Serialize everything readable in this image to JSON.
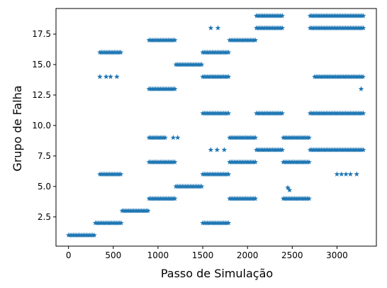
{
  "chart_data": {
    "type": "scatter",
    "title": "",
    "xlabel": "Passo de Simulação",
    "ylabel": "Grupo de Falha",
    "xlim": [
      -140,
      3440
    ],
    "ylim": [
      0.1,
      19.6
    ],
    "xticks": [
      0,
      500,
      1000,
      1500,
      2000,
      2500,
      3000
    ],
    "yticks": [
      2.5,
      5.0,
      7.5,
      10.0,
      12.5,
      15.0,
      17.5
    ],
    "xtick_labels": [
      "0",
      "500",
      "1000",
      "1500",
      "2000",
      "2500",
      "3000"
    ],
    "ytick_labels": [
      "2.5",
      "5.0",
      "7.5",
      "10.0",
      "12.5",
      "15.0",
      "17.5"
    ],
    "grid": false,
    "marker": "star",
    "color": "#1f77b4",
    "segments": [
      {
        "group": 1,
        "ranges": [
          [
            0,
            300
          ]
        ]
      },
      {
        "group": 2,
        "ranges": [
          [
            300,
            600
          ],
          [
            1500,
            1800
          ]
        ]
      },
      {
        "group": 3,
        "ranges": [
          [
            600,
            900
          ]
        ]
      },
      {
        "group": 4,
        "ranges": [
          [
            900,
            1200
          ],
          [
            1800,
            2100
          ],
          [
            2400,
            2700
          ]
        ]
      },
      {
        "group": 5,
        "ranges": [
          [
            1200,
            1500
          ]
        ]
      },
      {
        "group": 6,
        "ranges": [
          [
            350,
            600
          ],
          [
            1500,
            1800
          ]
        ]
      },
      {
        "group": 7,
        "ranges": [
          [
            900,
            1200
          ],
          [
            1800,
            2100
          ],
          [
            2400,
            2700
          ]
        ]
      },
      {
        "group": 8,
        "ranges": [
          [
            2100,
            2400
          ],
          [
            2700,
            3300
          ]
        ]
      },
      {
        "group": 9,
        "ranges": [
          [
            900,
            1080
          ],
          [
            1800,
            2100
          ],
          [
            2400,
            2700
          ]
        ]
      },
      {
        "group": 11,
        "ranges": [
          [
            1500,
            1800
          ],
          [
            2100,
            2400
          ],
          [
            2700,
            3300
          ]
        ]
      },
      {
        "group": 13,
        "ranges": [
          [
            900,
            1200
          ]
        ]
      },
      {
        "group": 14,
        "ranges": [
          [
            1500,
            1800
          ],
          [
            2750,
            3300
          ]
        ]
      },
      {
        "group": 15,
        "ranges": [
          [
            1200,
            1500
          ]
        ]
      },
      {
        "group": 16,
        "ranges": [
          [
            350,
            600
          ],
          [
            1500,
            1800
          ]
        ]
      },
      {
        "group": 17,
        "ranges": [
          [
            900,
            1200
          ],
          [
            1800,
            2100
          ]
        ]
      },
      {
        "group": 18,
        "ranges": [
          [
            2100,
            2400
          ],
          [
            2700,
            3300
          ]
        ]
      },
      {
        "group": 19,
        "ranges": [
          [
            2100,
            2400
          ],
          [
            2700,
            3300
          ]
        ]
      }
    ],
    "sparse_points": [
      {
        "x": 350,
        "y": 14
      },
      {
        "x": 420,
        "y": 14
      },
      {
        "x": 470,
        "y": 14
      },
      {
        "x": 540,
        "y": 14
      },
      {
        "x": 1590,
        "y": 18
      },
      {
        "x": 1670,
        "y": 18
      },
      {
        "x": 1590,
        "y": 8
      },
      {
        "x": 1660,
        "y": 8
      },
      {
        "x": 1740,
        "y": 8
      },
      {
        "x": 2450,
        "y": 4.9
      },
      {
        "x": 2470,
        "y": 4.7
      },
      {
        "x": 3000,
        "y": 6
      },
      {
        "x": 3050,
        "y": 6
      },
      {
        "x": 3100,
        "y": 6
      },
      {
        "x": 3150,
        "y": 6
      },
      {
        "x": 3220,
        "y": 6
      },
      {
        "x": 3270,
        "y": 13
      },
      {
        "x": 1170,
        "y": 9
      },
      {
        "x": 1220,
        "y": 9
      }
    ]
  }
}
